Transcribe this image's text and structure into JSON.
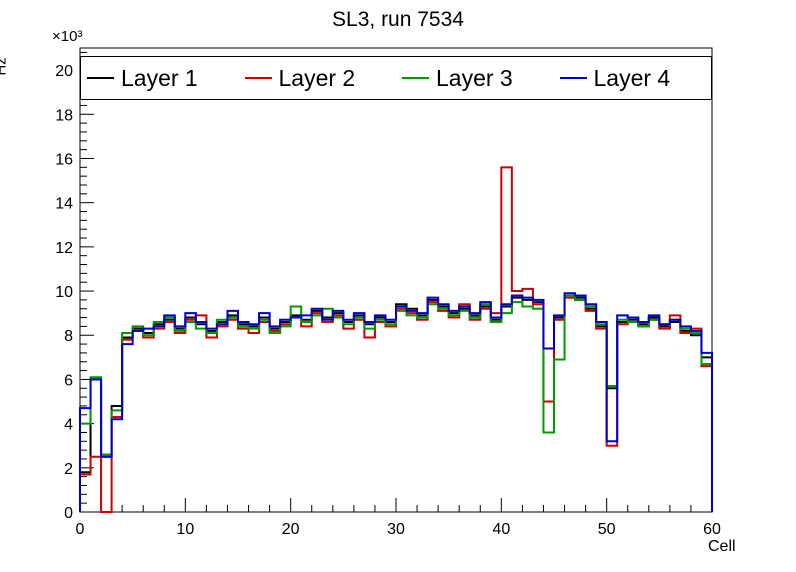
{
  "chart_data": {
    "type": "line",
    "subtype": "step-histogram",
    "title": "SL3, run 7534",
    "x_axis": {
      "label": "Cell",
      "min": 0,
      "max": 60,
      "major_step": 10,
      "minor_per_major": 5,
      "major_tick_labels": [
        "0",
        "10",
        "20",
        "30",
        "40",
        "50",
        "60"
      ]
    },
    "y_axis": {
      "label": "Hz",
      "min": 0,
      "max": 20000,
      "display_max": 21000,
      "major_step": 2000,
      "minor_per_major": 5,
      "multiplier": "×10³",
      "major_tick_labels": [
        "0",
        "2",
        "4",
        "6",
        "8",
        "10",
        "12",
        "14",
        "16",
        "18",
        "20"
      ]
    },
    "x_bins": {
      "start": 0,
      "width": 1,
      "count": 60
    },
    "legend_position": "top",
    "grid": false,
    "series": [
      {
        "name": "Layer 1",
        "color": "#000000",
        "values": [
          1800,
          6000,
          2500,
          4800,
          7900,
          8300,
          8100,
          8500,
          8700,
          8300,
          8800,
          8500,
          8200,
          8600,
          8900,
          8500,
          8400,
          8800,
          8300,
          8600,
          8900,
          8700,
          9100,
          8800,
          9000,
          8600,
          8900,
          8500,
          8800,
          8600,
          9400,
          9200,
          8900,
          9600,
          9300,
          9000,
          9200,
          8900,
          9300,
          8700,
          9300,
          9700,
          9600,
          9500,
          5000,
          8800,
          9800,
          9700,
          9200,
          8400,
          5600,
          8600,
          8700,
          8500,
          8800,
          8400,
          8600,
          8200,
          8000,
          7000
        ]
      },
      {
        "name": "Layer 2",
        "color": "#cc0000",
        "values": [
          1700,
          2500,
          0,
          4300,
          7800,
          8200,
          7900,
          8300,
          8600,
          8100,
          8700,
          8900,
          7900,
          8400,
          8700,
          8300,
          8100,
          8600,
          8200,
          8500,
          8800,
          8400,
          9000,
          8600,
          8900,
          8300,
          8700,
          7900,
          8600,
          8400,
          9200,
          9000,
          8700,
          9500,
          9100,
          8800,
          9400,
          8700,
          9200,
          9000,
          15600,
          10000,
          10100,
          9400,
          5000,
          8700,
          9700,
          9600,
          9100,
          8300,
          3000,
          8500,
          8800,
          8400,
          8700,
          8300,
          8900,
          8100,
          8300,
          6600
        ]
      },
      {
        "name": "Layer 3",
        "color": "#009900",
        "values": [
          4000,
          6100,
          2600,
          4600,
          8100,
          8400,
          8000,
          8600,
          8800,
          8200,
          8600,
          8300,
          8100,
          8700,
          8800,
          8400,
          8300,
          8700,
          8100,
          8400,
          9300,
          8600,
          8900,
          9200,
          8800,
          8500,
          8800,
          8300,
          8700,
          8500,
          9100,
          8900,
          8800,
          9400,
          9200,
          8900,
          9100,
          8800,
          9400,
          8600,
          9000,
          9500,
          9300,
          9200,
          3600,
          6900,
          9800,
          9600,
          9300,
          8500,
          5700,
          8700,
          8600,
          8400,
          8700,
          8500,
          8700,
          8300,
          8100,
          6700
        ]
      },
      {
        "name": "Layer 4",
        "color": "#0000cc",
        "values": [
          4700,
          6000,
          2500,
          4200,
          7600,
          8200,
          8300,
          8400,
          8900,
          8400,
          9000,
          8600,
          8300,
          8500,
          9100,
          8600,
          8500,
          9000,
          8400,
          8700,
          8800,
          8900,
          9200,
          8700,
          9100,
          8700,
          9000,
          8600,
          8900,
          8700,
          9300,
          9100,
          9000,
          9700,
          9400,
          9100,
          9300,
          9000,
          9500,
          8800,
          9400,
          9800,
          9700,
          9600,
          7400,
          8900,
          9900,
          9800,
          9400,
          8600,
          3200,
          8900,
          8800,
          8600,
          8900,
          8500,
          8700,
          8400,
          8200,
          7200
        ]
      }
    ]
  }
}
